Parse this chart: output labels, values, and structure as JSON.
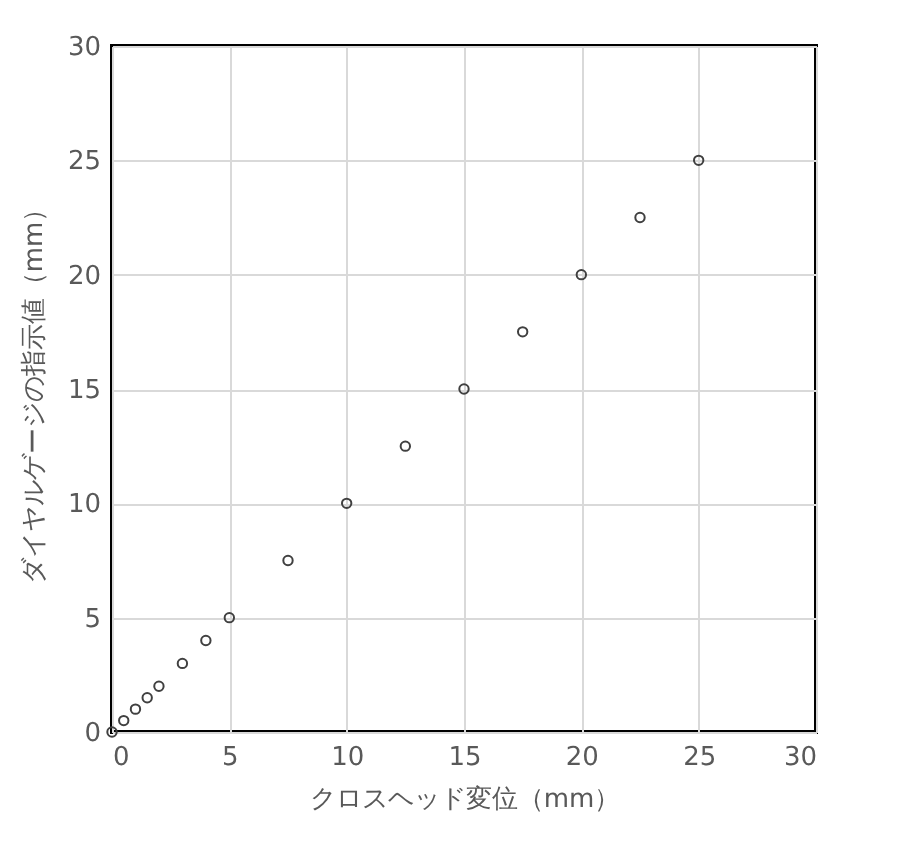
{
  "chart_data": {
    "type": "scatter",
    "xlabel": "クロスヘッド変位（mm）",
    "ylabel": "ダイヤルゲージの指示値（mm）",
    "x": [
      0,
      0.5,
      1,
      1.5,
      2,
      3,
      4,
      5,
      7.5,
      10,
      12.5,
      15,
      17.5,
      20,
      22.5,
      25
    ],
    "series": [
      {
        "color": "#404040",
        "values": [
          0,
          0.5,
          1,
          1.5,
          2,
          3,
          4,
          5,
          7.5,
          10,
          12.5,
          15,
          17.5,
          20,
          22.5,
          25
        ]
      }
    ],
    "xlim": [
      0,
      30
    ],
    "ylim": [
      0,
      30
    ],
    "xticks": [
      0,
      5,
      10,
      15,
      20,
      25,
      30
    ],
    "yticks": [
      0,
      5,
      10,
      15,
      20,
      25,
      30
    ],
    "grid": true,
    "marker": "circle"
  }
}
